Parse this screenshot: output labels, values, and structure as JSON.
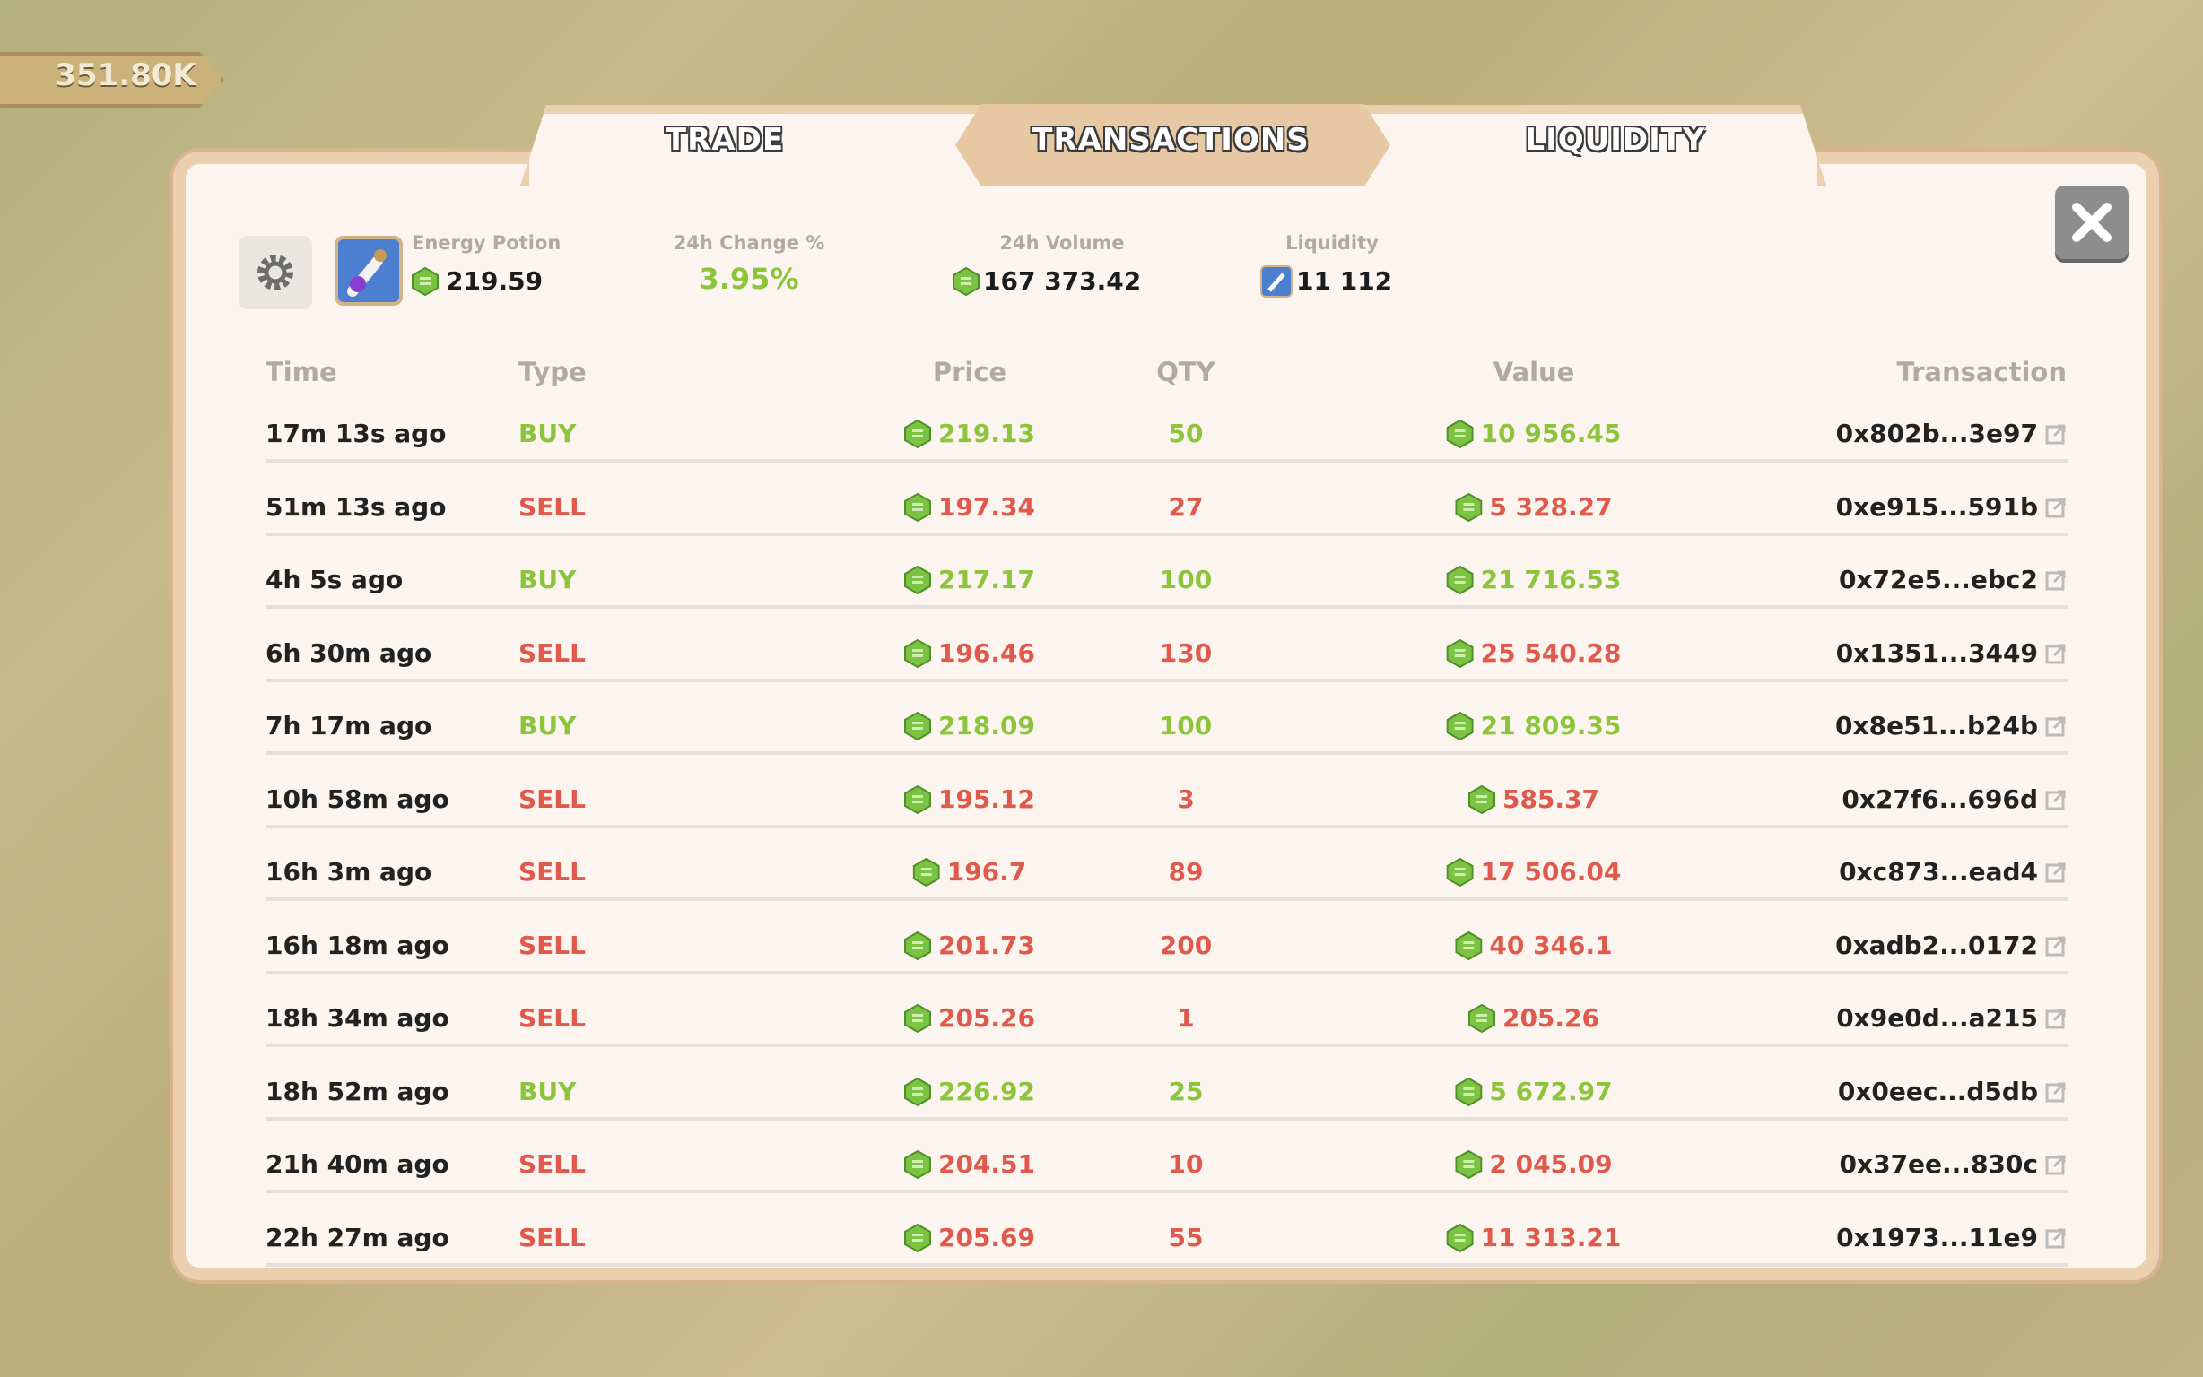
{
  "balance": "351.80K",
  "tabs": [
    "TRADE",
    "TRANSACTIONS",
    "LIQUIDITY"
  ],
  "header": {
    "item_name": "Energy Potion",
    "price": "219.59",
    "change_label": "24h Change %",
    "change": "3.95%",
    "volume_label": "24h Volume",
    "volume": "167 373.42",
    "liquidity_label": "Liquidity",
    "liquidity": "11 112"
  },
  "table": {
    "columns": [
      "Time",
      "Type",
      "Price",
      "QTY",
      "Value",
      "Transaction"
    ],
    "buy_color": "#8cc43c",
    "sell_color": "#df5a4c",
    "rows": [
      {
        "time": "17m 13s ago",
        "type": "BUY",
        "price": "219.13",
        "qty": "50",
        "value": "10 956.45",
        "transaction": "0x802b...3e97",
        "color": "#8cc43c"
      },
      {
        "time": "51m 13s ago",
        "type": "SELL",
        "price": "197.34",
        "qty": "27",
        "value": "5 328.27",
        "transaction": "0xe915...591b",
        "color": "#df5a4c"
      },
      {
        "time": "4h 5s ago",
        "type": "BUY",
        "price": "217.17",
        "qty": "100",
        "value": "21 716.53",
        "transaction": "0x72e5...ebc2",
        "color": "#8cc43c"
      },
      {
        "time": "6h 30m ago",
        "type": "SELL",
        "price": "196.46",
        "qty": "130",
        "value": "25 540.28",
        "transaction": "0x1351...3449",
        "color": "#df5a4c"
      },
      {
        "time": "7h 17m ago",
        "type": "BUY",
        "price": "218.09",
        "qty": "100",
        "value": "21 809.35",
        "transaction": "0x8e51...b24b",
        "color": "#8cc43c"
      },
      {
        "time": "10h 58m ago",
        "type": "SELL",
        "price": "195.12",
        "qty": "3",
        "value": "585.37",
        "transaction": "0x27f6...696d",
        "color": "#df5a4c"
      },
      {
        "time": "16h 3m ago",
        "type": "SELL",
        "price": "196.7",
        "qty": "89",
        "value": "17 506.04",
        "transaction": "0xc873...ead4",
        "color": "#df5a4c"
      },
      {
        "time": "16h 18m ago",
        "type": "SELL",
        "price": "201.73",
        "qty": "200",
        "value": "40 346.1",
        "transaction": "0xadb2...0172",
        "color": "#df5a4c"
      },
      {
        "time": "18h 34m ago",
        "type": "SELL",
        "price": "205.26",
        "qty": "1",
        "value": "205.26",
        "transaction": "0x9e0d...a215",
        "color": "#df5a4c"
      },
      {
        "time": "18h 52m ago",
        "type": "BUY",
        "price": "226.92",
        "qty": "25",
        "value": "5 672.97",
        "transaction": "0x0eec...d5db",
        "color": "#8cc43c"
      },
      {
        "time": "21h 40m ago",
        "type": "SELL",
        "price": "204.51",
        "qty": "10",
        "value": "2 045.09",
        "transaction": "0x37ee...830c",
        "color": "#df5a4c"
      },
      {
        "time": "22h 27m ago",
        "type": "SELL",
        "price": "205.69",
        "qty": "55",
        "value": "11 313.21",
        "transaction": "0x1973...11e9",
        "color": "#df5a4c"
      }
    ]
  }
}
